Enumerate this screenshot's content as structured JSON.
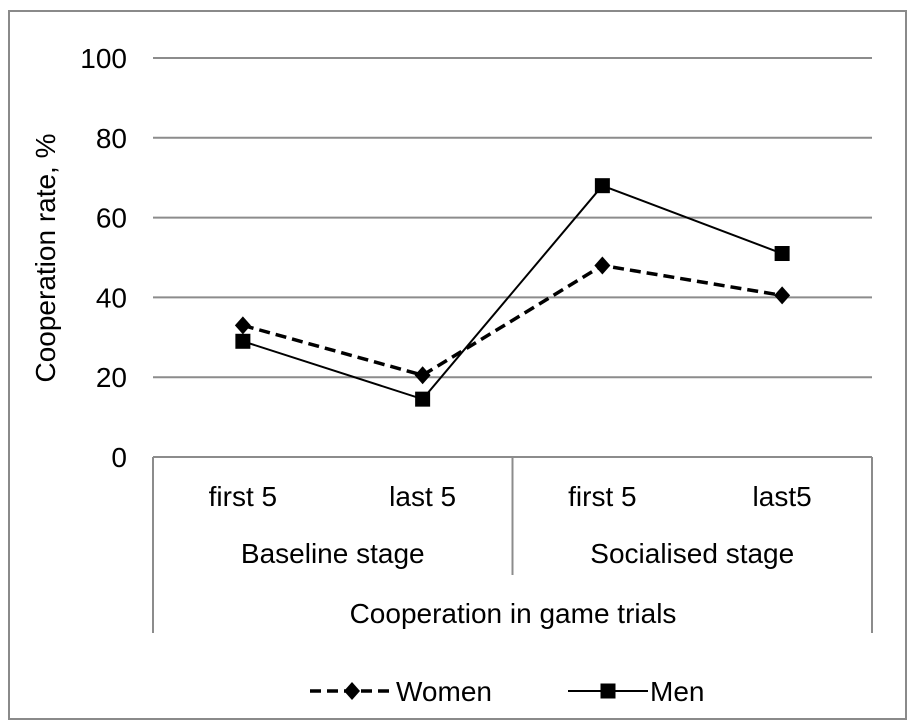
{
  "chart_data": {
    "type": "line",
    "title": "",
    "ylabel": "Cooperation rate, %",
    "xlabel": "Cooperation in game trials",
    "ylim": [
      0,
      100
    ],
    "yticks": [
      0,
      20,
      40,
      60,
      80,
      100
    ],
    "categories": [
      "first 5",
      "last 5",
      "first 5",
      "last5"
    ],
    "groups": [
      {
        "label": "Baseline stage",
        "span": [
          0,
          1
        ]
      },
      {
        "label": "Socialised stage",
        "span": [
          2,
          3
        ]
      }
    ],
    "grid": true,
    "legend": "bottom",
    "series": [
      {
        "name": "Women",
        "values": [
          33,
          20.5,
          48,
          40.5
        ],
        "style": "dashed",
        "marker": "diamond",
        "color": "#000000"
      },
      {
        "name": "Men",
        "values": [
          29,
          14.5,
          68,
          51
        ],
        "style": "solid",
        "marker": "square",
        "color": "#000000"
      }
    ]
  }
}
